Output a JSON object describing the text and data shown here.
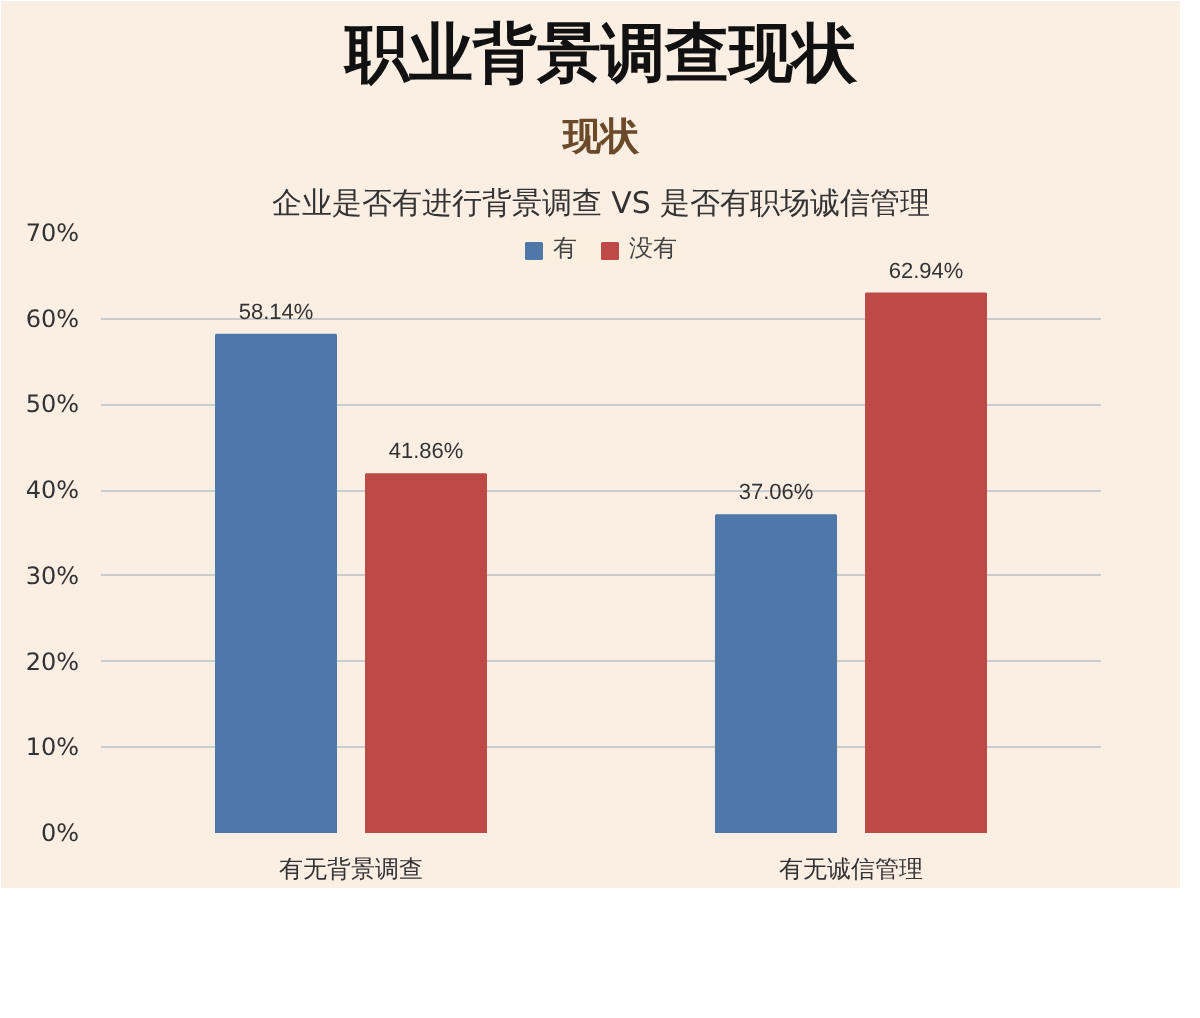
{
  "chart_data": {
    "type": "bar",
    "title": "职业背景调查现状",
    "subtitle": "现状",
    "annotations": [
      "企业是否有进行背景调查 VS 是否有职场诚信管理"
    ],
    "categories": [
      "有无背景调查",
      "有无诚信管理"
    ],
    "series": [
      {
        "name": "有",
        "color": "#4f78a8",
        "values": [
          58.14,
          37.06
        ],
        "value_labels": [
          "58.14%",
          "37.06%"
        ]
      },
      {
        "name": "没有",
        "color": "#bd4a47",
        "values": [
          41.86,
          62.94
        ],
        "value_labels": [
          "41.86%",
          "62.94%"
        ]
      }
    ],
    "ylim": [
      0,
      70
    ],
    "yticks": [
      {
        "value": 0,
        "label": "0%"
      },
      {
        "value": 10,
        "label": "10%"
      },
      {
        "value": 20,
        "label": "20%"
      },
      {
        "value": 30,
        "label": "30%"
      },
      {
        "value": 40,
        "label": "40%"
      },
      {
        "value": 50,
        "label": "50%"
      },
      {
        "value": 60,
        "label": "60%"
      },
      {
        "value": 70,
        "label": "70%"
      }
    ],
    "grid": "y",
    "legend": "top"
  }
}
